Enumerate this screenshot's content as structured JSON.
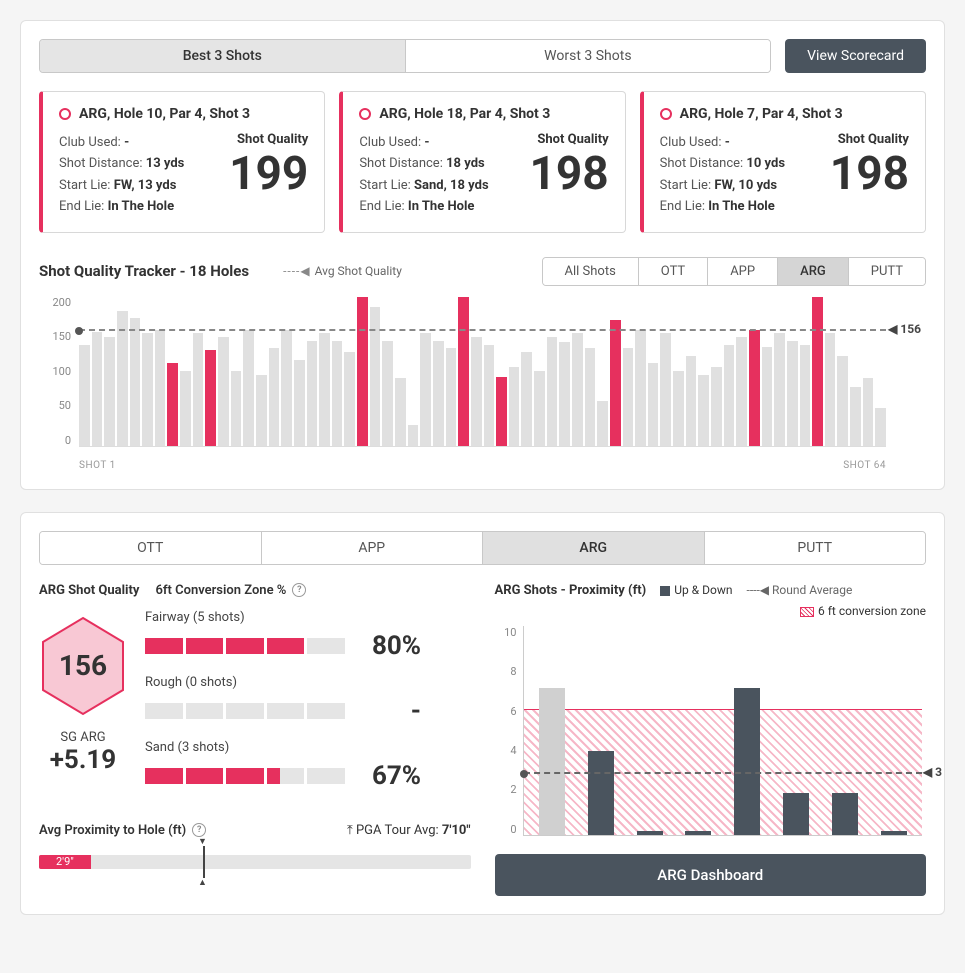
{
  "colors": {
    "accent": "#e6305e",
    "dark": "#4a545e",
    "grey_bar": "#e0e0e0",
    "text": "#333333"
  },
  "top": {
    "segments": [
      "Best 3 Shots",
      "Worst 3 Shots"
    ],
    "active_segment": 0,
    "view_scorecard": "View Scorecard"
  },
  "shot_cards": [
    {
      "title": "ARG, Hole 10, Par 4, Shot 3",
      "club_lbl": "Club Used:",
      "club_val": "-",
      "dist_lbl": "Shot Distance:",
      "dist_val": "13 yds",
      "start_lbl": "Start Lie:",
      "start_val": "FW, 13 yds",
      "end_lbl": "End Lie:",
      "end_val": "In The Hole",
      "sq_label": "Shot Quality",
      "sq_value": "199"
    },
    {
      "title": "ARG, Hole 18, Par 4, Shot 3",
      "club_lbl": "Club Used:",
      "club_val": "-",
      "dist_lbl": "Shot Distance:",
      "dist_val": "18 yds",
      "start_lbl": "Start Lie:",
      "start_val": "Sand, 18 yds",
      "end_lbl": "End Lie:",
      "end_val": "In The Hole",
      "sq_label": "Shot Quality",
      "sq_value": "198"
    },
    {
      "title": "ARG, Hole 7, Par 4, Shot 3",
      "club_lbl": "Club Used:",
      "club_val": "-",
      "dist_lbl": "Shot Distance:",
      "dist_val": "10 yds",
      "start_lbl": "Start Lie:",
      "start_val": "FW, 10 yds",
      "end_lbl": "End Lie:",
      "end_val": "In The Hole",
      "sq_label": "Shot Quality",
      "sq_value": "198"
    }
  ],
  "tracker": {
    "title": "Shot Quality Tracker - 18 Holes",
    "avg_legend": "Avg Shot Quality",
    "tabs": [
      "All Shots",
      "OTT",
      "APP",
      "ARG",
      "PUTT"
    ],
    "active_tab": 3,
    "y_ticks": [
      "200",
      "150",
      "100",
      "50",
      "0"
    ],
    "y_max": 200,
    "avg_value": 156,
    "x_start": "SHOT 1",
    "x_end": "SHOT 64",
    "bars": [
      {
        "v": 135,
        "hl": false
      },
      {
        "v": 152,
        "hl": false
      },
      {
        "v": 145,
        "hl": false
      },
      {
        "v": 180,
        "hl": false
      },
      {
        "v": 170,
        "hl": false
      },
      {
        "v": 150,
        "hl": false
      },
      {
        "v": 155,
        "hl": false
      },
      {
        "v": 110,
        "hl": true
      },
      {
        "v": 100,
        "hl": false
      },
      {
        "v": 150,
        "hl": false
      },
      {
        "v": 128,
        "hl": true
      },
      {
        "v": 145,
        "hl": false
      },
      {
        "v": 100,
        "hl": false
      },
      {
        "v": 155,
        "hl": false
      },
      {
        "v": 95,
        "hl": false
      },
      {
        "v": 130,
        "hl": false
      },
      {
        "v": 155,
        "hl": false
      },
      {
        "v": 115,
        "hl": false
      },
      {
        "v": 140,
        "hl": false
      },
      {
        "v": 150,
        "hl": false
      },
      {
        "v": 140,
        "hl": false
      },
      {
        "v": 125,
        "hl": false
      },
      {
        "v": 198,
        "hl": true
      },
      {
        "v": 185,
        "hl": false
      },
      {
        "v": 140,
        "hl": false
      },
      {
        "v": 90,
        "hl": false
      },
      {
        "v": 28,
        "hl": false
      },
      {
        "v": 150,
        "hl": false
      },
      {
        "v": 140,
        "hl": false
      },
      {
        "v": 130,
        "hl": false
      },
      {
        "v": 199,
        "hl": true
      },
      {
        "v": 145,
        "hl": false
      },
      {
        "v": 135,
        "hl": false
      },
      {
        "v": 92,
        "hl": true
      },
      {
        "v": 105,
        "hl": false
      },
      {
        "v": 125,
        "hl": false
      },
      {
        "v": 100,
        "hl": false
      },
      {
        "v": 145,
        "hl": false
      },
      {
        "v": 138,
        "hl": false
      },
      {
        "v": 150,
        "hl": false
      },
      {
        "v": 130,
        "hl": false
      },
      {
        "v": 60,
        "hl": false
      },
      {
        "v": 168,
        "hl": true
      },
      {
        "v": 130,
        "hl": false
      },
      {
        "v": 155,
        "hl": false
      },
      {
        "v": 110,
        "hl": false
      },
      {
        "v": 150,
        "hl": false
      },
      {
        "v": 100,
        "hl": false
      },
      {
        "v": 120,
        "hl": false
      },
      {
        "v": 95,
        "hl": false
      },
      {
        "v": 105,
        "hl": false
      },
      {
        "v": 135,
        "hl": false
      },
      {
        "v": 145,
        "hl": false
      },
      {
        "v": 155,
        "hl": true
      },
      {
        "v": 132,
        "hl": false
      },
      {
        "v": 150,
        "hl": false
      },
      {
        "v": 140,
        "hl": false
      },
      {
        "v": 135,
        "hl": false
      },
      {
        "v": 198,
        "hl": true
      },
      {
        "v": 150,
        "hl": false
      },
      {
        "v": 120,
        "hl": false
      },
      {
        "v": 78,
        "hl": false
      },
      {
        "v": 90,
        "hl": false
      },
      {
        "v": 50,
        "hl": false
      }
    ]
  },
  "lower": {
    "tabs": [
      "OTT",
      "APP",
      "ARG",
      "PUTT"
    ],
    "active_tab": 2,
    "sq_title": "ARG Shot Quality",
    "conv_title": "6ft Conversion Zone %",
    "hex_value": "156",
    "sg_label": "SG ARG",
    "sg_value": "+5.19",
    "conv_rows": [
      {
        "label": "Fairway (5 shots)",
        "filled": 4,
        "total": 5,
        "pct": "80%"
      },
      {
        "label": "Rough (0 shots)",
        "filled": 0,
        "total": 5,
        "pct": "-"
      },
      {
        "label": "Sand (3 shots)",
        "filled": 3.35,
        "total": 5,
        "pct": "67%"
      }
    ],
    "prox_label": "Avg Proximity to Hole (ft)",
    "pga_label": "PGA Tour Avg:",
    "pga_value": "7'10\"",
    "prox_fill_pct": 12,
    "prox_fill_text": "2'9\"",
    "prox_marker_pct": 38
  },
  "prox_chart": {
    "title": "ARG Shots - Proximity (ft)",
    "leg_updown": "Up & Down",
    "leg_round": "Round Average",
    "leg_zone": "6 ft conversion zone",
    "y_ticks": [
      "10",
      "8",
      "6",
      "4",
      "2",
      "0"
    ],
    "y_max": 10,
    "zone_top": 6,
    "avg_value": 3,
    "bars": [
      {
        "v": 7,
        "up": false
      },
      {
        "v": 4,
        "up": true
      },
      {
        "v": 0.2,
        "up": true
      },
      {
        "v": 0.2,
        "up": true
      },
      {
        "v": 7,
        "up": true
      },
      {
        "v": 2,
        "up": true
      },
      {
        "v": 2,
        "up": true
      },
      {
        "v": 0.2,
        "up": true
      }
    ],
    "dashboard_btn": "ARG Dashboard"
  }
}
